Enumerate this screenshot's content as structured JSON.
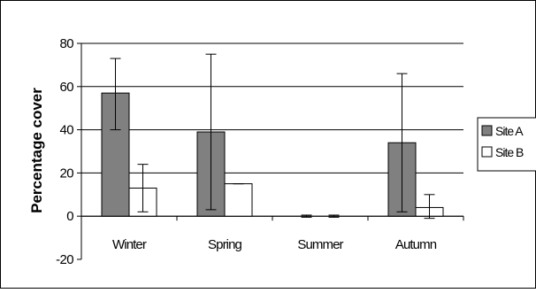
{
  "chart_data": {
    "type": "bar",
    "categories": [
      "Winter",
      "Spring",
      "Summer",
      "Autumn"
    ],
    "series": [
      {
        "name": "Site A",
        "color": "#808080",
        "values": [
          57,
          39,
          0,
          34
        ],
        "error_low": [
          40,
          3,
          -0.5,
          2
        ],
        "error_high": [
          73,
          75,
          0.5,
          66
        ]
      },
      {
        "name": "Site B",
        "color": "#ffffff",
        "values": [
          13,
          15,
          0,
          4
        ],
        "error_low": [
          2,
          15,
          -0.5,
          -1
        ],
        "error_high": [
          24,
          15,
          0.5,
          10
        ]
      }
    ],
    "ylabel": "Percentage cover",
    "xlabel": "",
    "title": "",
    "ylim": [
      -20,
      80
    ],
    "yticks": [
      -20,
      0,
      20,
      40,
      60,
      80
    ],
    "grid": true,
    "legend_position": "right"
  }
}
